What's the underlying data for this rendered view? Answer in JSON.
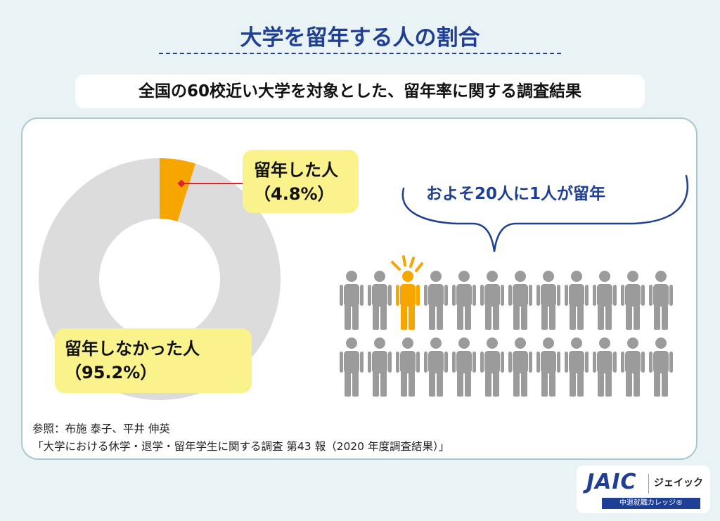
{
  "header": {
    "title": "大学を留年する人の割合",
    "subtitle": "全国の60校近い大学を対象とした、留年率に関する調査結果"
  },
  "chart_data": {
    "type": "pie",
    "subtype": "donut",
    "slices": [
      {
        "label": "留年した人",
        "value": 4.8,
        "value_label": "（4.8%）",
        "color": "#f7a600"
      },
      {
        "label": "留年しなかった人",
        "value": 95.2,
        "value_label": "（95.2%）",
        "color": "#dcdcdc"
      }
    ],
    "legend": "none"
  },
  "illustration": {
    "caption": "およそ20人に1人が留年",
    "people_total": 24,
    "people_rows": 2,
    "people_per_row": 12,
    "highlighted_index": 2,
    "highlight_color": "#f7a600",
    "default_color": "#9b9b9b"
  },
  "reference": {
    "line1": "参照：布施 泰子、平井 伸英",
    "line2": "「大学における休学・退学・留年学生に関する調査 第43 報（2020 年度調査結果）」"
  },
  "logo": {
    "mark": "JAIC",
    "kana": "ジェイック",
    "tagline": "中退就職カレッジ®"
  },
  "colors": {
    "accent": "#1f3f94",
    "callout": "#faf28a",
    "pointer": "#e0232b"
  }
}
